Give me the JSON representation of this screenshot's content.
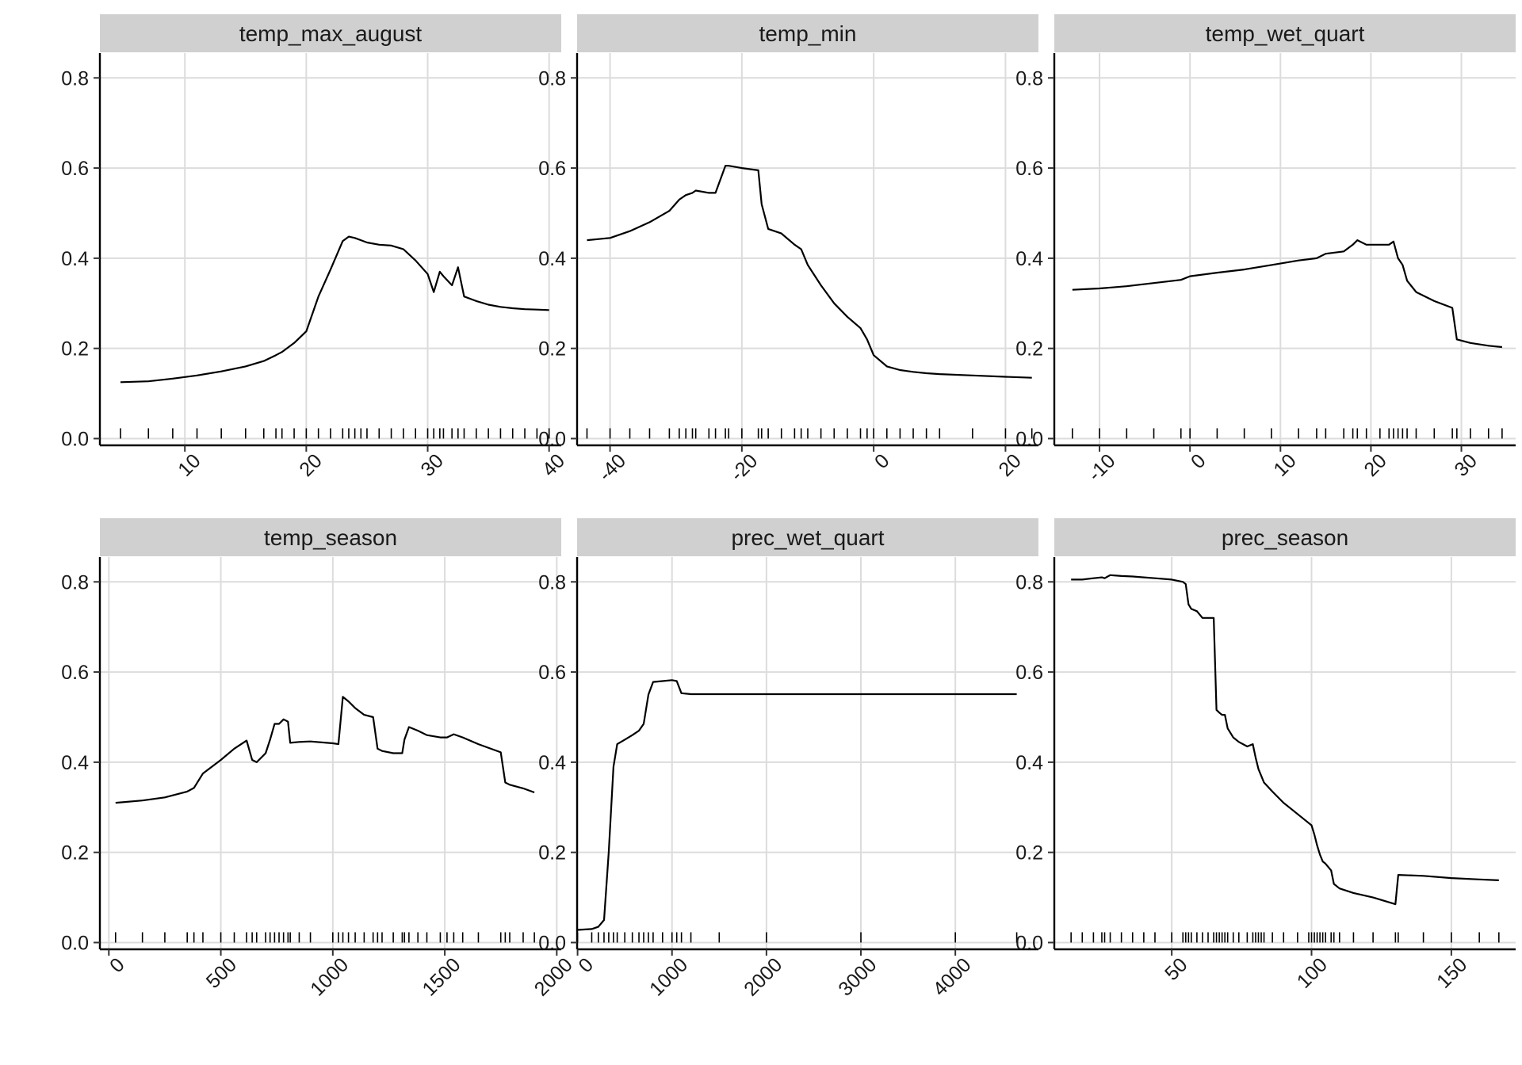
{
  "chart_data": [
    {
      "type": "line",
      "title": "temp_max_august",
      "xlim": [
        3,
        41
      ],
      "ylim": [
        -0.015,
        0.855
      ],
      "x_ticks": [
        10,
        20,
        30,
        40
      ],
      "x_tick_labels": [
        "10",
        "20",
        "30",
        "40"
      ],
      "y_ticks": [
        0.0,
        0.2,
        0.4,
        0.6,
        0.8
      ],
      "y_tick_labels": [
        "0.0",
        "0.2",
        "0.4",
        "0.6",
        "0.8"
      ],
      "grid": true,
      "rug": true,
      "series": [
        {
          "x": [
            4.7,
            7,
            9,
            11,
            13,
            15,
            16.5,
            17.5,
            18,
            19,
            20,
            21,
            22,
            23,
            23.5,
            24,
            24.5,
            25,
            26,
            27,
            28,
            29,
            30,
            30.5,
            31,
            31.3,
            32,
            32.5,
            33,
            34,
            35,
            36,
            37,
            38,
            39,
            40
          ],
          "y": [
            0.125,
            0.127,
            0.133,
            0.14,
            0.149,
            0.16,
            0.172,
            0.185,
            0.192,
            0.212,
            0.238,
            0.315,
            0.375,
            0.438,
            0.448,
            0.445,
            0.44,
            0.435,
            0.43,
            0.428,
            0.42,
            0.395,
            0.365,
            0.325,
            0.37,
            0.36,
            0.34,
            0.38,
            0.315,
            0.305,
            0.297,
            0.292,
            0.289,
            0.287,
            0.286,
            0.285
          ]
        }
      ]
    },
    {
      "type": "line",
      "title": "temp_min",
      "xlim": [
        -45,
        25
      ],
      "ylim": [
        -0.015,
        0.855
      ],
      "x_ticks": [
        -40,
        -20,
        0,
        20
      ],
      "x_tick_labels": [
        "-40",
        "-20",
        "0",
        "20"
      ],
      "y_ticks": [
        0.0,
        0.2,
        0.4,
        0.6,
        0.8
      ],
      "y_tick_labels": [
        "0.0",
        "0.2",
        "0.4",
        "0.6",
        "0.8"
      ],
      "grid": true,
      "rug": true,
      "series": [
        {
          "x": [
            -43.5,
            -40,
            -37,
            -34,
            -31,
            -29.5,
            -28.5,
            -27.5,
            -27,
            -25,
            -24,
            -22.5,
            -22,
            -20,
            -17.5,
            -17,
            -16,
            -14,
            -12,
            -11,
            -10,
            -8,
            -6,
            -4,
            -2,
            -1,
            0,
            2,
            4,
            6,
            8,
            10,
            15,
            20,
            24
          ],
          "y": [
            0.44,
            0.445,
            0.46,
            0.48,
            0.505,
            0.53,
            0.54,
            0.545,
            0.55,
            0.545,
            0.545,
            0.605,
            0.605,
            0.6,
            0.595,
            0.52,
            0.465,
            0.455,
            0.43,
            0.42,
            0.385,
            0.34,
            0.3,
            0.27,
            0.245,
            0.22,
            0.185,
            0.16,
            0.152,
            0.148,
            0.145,
            0.143,
            0.14,
            0.137,
            0.135
          ]
        }
      ]
    },
    {
      "type": "line",
      "title": "temp_wet_quart",
      "xlim": [
        -15,
        36
      ],
      "ylim": [
        -0.015,
        0.855
      ],
      "x_ticks": [
        -10,
        0,
        10,
        20,
        30
      ],
      "x_tick_labels": [
        "-10",
        "0",
        "10",
        "20",
        "30"
      ],
      "y_ticks": [
        0.0,
        0.2,
        0.4,
        0.6,
        0.8
      ],
      "y_tick_labels": [
        "0.0",
        "0.2",
        "0.4",
        "0.6",
        "0.8"
      ],
      "grid": true,
      "rug": true,
      "series": [
        {
          "x": [
            -13,
            -10,
            -7,
            -4,
            -1,
            0,
            3,
            6,
            9,
            12,
            14,
            15,
            17,
            18,
            18.5,
            19.5,
            21,
            22,
            22.5,
            23,
            23.5,
            24,
            25,
            27,
            29,
            29.5,
            31,
            33,
            34.5
          ],
          "y": [
            0.33,
            0.333,
            0.338,
            0.345,
            0.352,
            0.36,
            0.368,
            0.375,
            0.385,
            0.395,
            0.4,
            0.41,
            0.415,
            0.43,
            0.44,
            0.43,
            0.43,
            0.43,
            0.437,
            0.4,
            0.385,
            0.35,
            0.325,
            0.305,
            0.29,
            0.22,
            0.212,
            0.206,
            0.203
          ]
        }
      ]
    },
    {
      "type": "line",
      "title": "temp_season",
      "xlim": [
        -40,
        2020
      ],
      "ylim": [
        -0.015,
        0.855
      ],
      "x_ticks": [
        0,
        500,
        1000,
        1500,
        2000
      ],
      "x_tick_labels": [
        "0",
        "500",
        "1000",
        "1500",
        "2000"
      ],
      "y_ticks": [
        0.0,
        0.2,
        0.4,
        0.6,
        0.8
      ],
      "y_tick_labels": [
        "0.0",
        "0.2",
        "0.4",
        "0.6",
        "0.8"
      ],
      "grid": true,
      "rug": true,
      "series": [
        {
          "x": [
            30,
            150,
            250,
            350,
            380,
            420,
            500,
            560,
            615,
            640,
            660,
            700,
            720,
            740,
            760,
            780,
            800,
            810,
            850,
            900,
            1000,
            1025,
            1045,
            1070,
            1100,
            1140,
            1180,
            1200,
            1220,
            1270,
            1310,
            1320,
            1340,
            1380,
            1420,
            1480,
            1510,
            1540,
            1580,
            1650,
            1750,
            1770,
            1790,
            1850,
            1900
          ],
          "y": [
            0.31,
            0.315,
            0.322,
            0.335,
            0.343,
            0.375,
            0.405,
            0.43,
            0.448,
            0.405,
            0.4,
            0.42,
            0.45,
            0.485,
            0.485,
            0.495,
            0.49,
            0.443,
            0.445,
            0.446,
            0.442,
            0.44,
            0.545,
            0.535,
            0.52,
            0.505,
            0.5,
            0.43,
            0.425,
            0.42,
            0.42,
            0.45,
            0.478,
            0.47,
            0.46,
            0.455,
            0.455,
            0.462,
            0.455,
            0.44,
            0.422,
            0.355,
            0.35,
            0.342,
            0.333
          ]
        }
      ]
    },
    {
      "type": "line",
      "title": "prec_wet_quart",
      "xlim": [
        -5,
        4880
      ],
      "ylim": [
        -0.015,
        0.855
      ],
      "x_ticks": [
        0,
        1000,
        2000,
        3000,
        4000
      ],
      "x_tick_labels": [
        "0",
        "1000",
        "2000",
        "3000",
        "4000"
      ],
      "y_ticks": [
        0.0,
        0.2,
        0.4,
        0.6,
        0.8
      ],
      "y_tick_labels": [
        "0.0",
        "0.2",
        "0.4",
        "0.6",
        "0.8"
      ],
      "grid": true,
      "rug": true,
      "series": [
        {
          "x": [
            0,
            150,
            220,
            280,
            330,
            380,
            420,
            500,
            580,
            650,
            700,
            750,
            800,
            900,
            1000,
            1050,
            1100,
            1200,
            1500,
            2000,
            3000,
            4000,
            4650
          ],
          "y": [
            0.028,
            0.03,
            0.035,
            0.05,
            0.2,
            0.39,
            0.44,
            0.45,
            0.46,
            0.47,
            0.485,
            0.55,
            0.578,
            0.58,
            0.582,
            0.58,
            0.553,
            0.551,
            0.551,
            0.551,
            0.551,
            0.551,
            0.551
          ]
        }
      ]
    },
    {
      "type": "line",
      "title": "prec_season",
      "xlim": [
        8,
        173
      ],
      "ylim": [
        -0.015,
        0.855
      ],
      "x_ticks": [
        50,
        100,
        150
      ],
      "x_tick_labels": [
        "50",
        "100",
        "150"
      ],
      "y_ticks": [
        0.0,
        0.2,
        0.4,
        0.6,
        0.8
      ],
      "y_tick_labels": [
        "0.0",
        "0.2",
        "0.4",
        "0.6",
        "0.8"
      ],
      "grid": true,
      "rug": true,
      "series": [
        {
          "x": [
            14,
            18,
            22,
            25,
            26,
            28,
            32,
            36,
            40,
            44,
            50,
            54,
            55,
            56,
            57,
            59,
            61,
            63,
            65,
            66,
            67,
            68,
            69,
            70,
            72,
            74,
            77,
            79,
            80,
            81,
            82,
            83,
            86,
            90,
            95,
            99,
            100,
            101,
            102,
            103,
            104,
            105,
            107,
            108,
            110,
            115,
            122,
            130,
            131,
            140,
            150,
            160,
            167
          ],
          "y": [
            0.805,
            0.805,
            0.808,
            0.81,
            0.808,
            0.815,
            0.813,
            0.812,
            0.81,
            0.808,
            0.805,
            0.8,
            0.795,
            0.75,
            0.74,
            0.735,
            0.72,
            0.72,
            0.72,
            0.516,
            0.51,
            0.505,
            0.505,
            0.475,
            0.455,
            0.445,
            0.435,
            0.44,
            0.41,
            0.385,
            0.37,
            0.355,
            0.335,
            0.31,
            0.285,
            0.265,
            0.26,
            0.24,
            0.215,
            0.195,
            0.18,
            0.175,
            0.16,
            0.13,
            0.12,
            0.11,
            0.1,
            0.085,
            0.15,
            0.148,
            0.143,
            0.14,
            0.138
          ]
        }
      ]
    }
  ]
}
